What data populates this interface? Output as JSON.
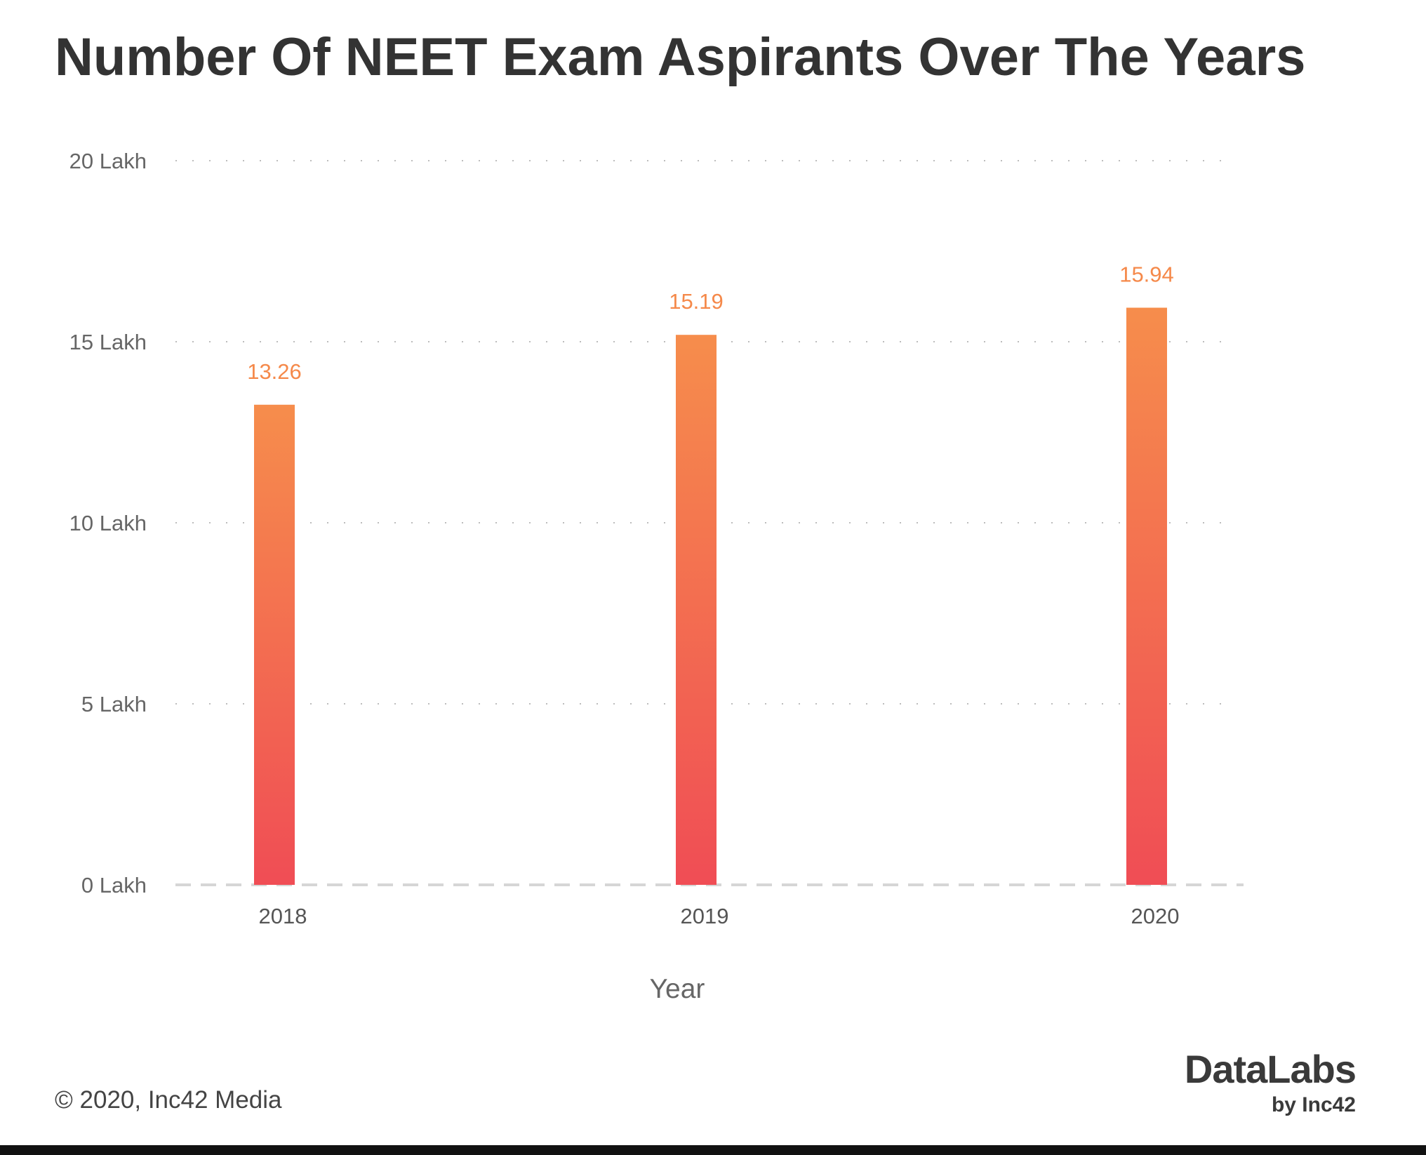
{
  "chart_data": {
    "type": "bar",
    "title": "Number Of NEET Exam Aspirants Over The Years",
    "xlabel": "Year",
    "ylabel": "",
    "categories": [
      "2018",
      "2019",
      "2020"
    ],
    "values": [
      13.26,
      15.19,
      15.94
    ],
    "data_labels": [
      "13.26",
      "15.19",
      "15.94"
    ],
    "ylim": [
      0,
      20
    ],
    "yticks": [
      0,
      5,
      10,
      15,
      20
    ],
    "ytick_labels": [
      "0 Lakh",
      "5 Lakh",
      "10 Lakh",
      "15 Lakh",
      "20 Lakh"
    ],
    "grid": true,
    "legend": "none",
    "colors": {
      "bar_top": "#F68D4C",
      "bar_bottom": "#F04D55",
      "data_label": "#F5894A"
    }
  },
  "footer": {
    "copyright": "© 2020, Inc42 Media",
    "brand": "DataLabs",
    "brand_sub": "by Inc42"
  }
}
